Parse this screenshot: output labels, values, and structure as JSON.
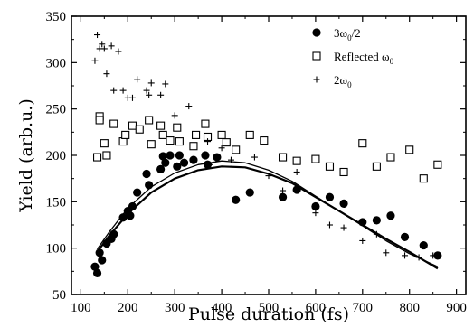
{
  "chart_data": {
    "type": "scatter",
    "xlabel": "Pulse duration (fs)",
    "ylabel": "Yield (arb.u.)",
    "xlim": [
      80,
      920
    ],
    "ylim": [
      50,
      350
    ],
    "xticks": [
      100,
      200,
      300,
      400,
      500,
      600,
      700,
      800,
      900
    ],
    "yticks": [
      50,
      100,
      150,
      200,
      250,
      300,
      350
    ],
    "legend_position": "top-right",
    "series": [
      {
        "name": "3ω0/2",
        "label_main": "3ω",
        "label_sub": "0",
        "label_suffix": "/2",
        "marker": "filled-circle",
        "color": "#000000",
        "points": [
          [
            130,
            80
          ],
          [
            135,
            73
          ],
          [
            145,
            87
          ],
          [
            140,
            95
          ],
          [
            155,
            105
          ],
          [
            165,
            110
          ],
          [
            170,
            115
          ],
          [
            190,
            133
          ],
          [
            200,
            140
          ],
          [
            205,
            135
          ],
          [
            210,
            145
          ],
          [
            220,
            160
          ],
          [
            240,
            180
          ],
          [
            245,
            168
          ],
          [
            270,
            185
          ],
          [
            275,
            199
          ],
          [
            280,
            192
          ],
          [
            290,
            200
          ],
          [
            305,
            188
          ],
          [
            310,
            200
          ],
          [
            320,
            192
          ],
          [
            340,
            195
          ],
          [
            365,
            200
          ],
          [
            370,
            190
          ],
          [
            390,
            198
          ],
          [
            430,
            152
          ],
          [
            460,
            160
          ],
          [
            530,
            155
          ],
          [
            560,
            163
          ],
          [
            600,
            145
          ],
          [
            630,
            155
          ],
          [
            660,
            148
          ],
          [
            700,
            128
          ],
          [
            730,
            130
          ],
          [
            760,
            135
          ],
          [
            790,
            112
          ],
          [
            830,
            103
          ],
          [
            860,
            92
          ]
        ]
      },
      {
        "name": "Reflected ω0",
        "label_main": "Reflected ω",
        "label_sub": "0",
        "label_suffix": "",
        "marker": "open-square",
        "color": "#000000",
        "points": [
          [
            135,
            198
          ],
          [
            140,
            242
          ],
          [
            140,
            238
          ],
          [
            150,
            213
          ],
          [
            155,
            200
          ],
          [
            170,
            234
          ],
          [
            190,
            215
          ],
          [
            195,
            222
          ],
          [
            210,
            232
          ],
          [
            225,
            228
          ],
          [
            245,
            238
          ],
          [
            250,
            212
          ],
          [
            270,
            232
          ],
          [
            275,
            222
          ],
          [
            290,
            216
          ],
          [
            305,
            230
          ],
          [
            310,
            215
          ],
          [
            340,
            210
          ],
          [
            345,
            222
          ],
          [
            365,
            234
          ],
          [
            370,
            220
          ],
          [
            400,
            222
          ],
          [
            410,
            214
          ],
          [
            430,
            206
          ],
          [
            460,
            222
          ],
          [
            490,
            216
          ],
          [
            530,
            198
          ],
          [
            560,
            194
          ],
          [
            600,
            196
          ],
          [
            630,
            188
          ],
          [
            660,
            182
          ],
          [
            700,
            213
          ],
          [
            730,
            188
          ],
          [
            760,
            198
          ],
          [
            800,
            206
          ],
          [
            830,
            175
          ],
          [
            860,
            190
          ]
        ]
      },
      {
        "name": "2ω0",
        "label_main": "2ω",
        "label_sub": "0",
        "label_suffix": "",
        "marker": "plus",
        "color": "#000000",
        "points": [
          [
            130,
            302
          ],
          [
            135,
            330
          ],
          [
            140,
            315
          ],
          [
            145,
            320
          ],
          [
            150,
            315
          ],
          [
            155,
            288
          ],
          [
            165,
            318
          ],
          [
            170,
            270
          ],
          [
            180,
            312
          ],
          [
            190,
            270
          ],
          [
            200,
            262
          ],
          [
            210,
            262
          ],
          [
            220,
            282
          ],
          [
            240,
            270
          ],
          [
            245,
            265
          ],
          [
            250,
            278
          ],
          [
            270,
            265
          ],
          [
            280,
            277
          ],
          [
            300,
            243
          ],
          [
            330,
            253
          ],
          [
            370,
            215
          ],
          [
            375,
            190
          ],
          [
            400,
            208
          ],
          [
            420,
            195
          ],
          [
            470,
            198
          ],
          [
            500,
            178
          ],
          [
            530,
            162
          ],
          [
            560,
            182
          ],
          [
            600,
            138
          ],
          [
            630,
            125
          ],
          [
            660,
            122
          ],
          [
            700,
            108
          ],
          [
            730,
            115
          ],
          [
            750,
            95
          ],
          [
            790,
            92
          ],
          [
            820,
            90
          ],
          [
            850,
            92
          ]
        ]
      }
    ],
    "fits": [
      {
        "stroke_width": 2.2,
        "points": [
          [
            135,
            96
          ],
          [
            160,
            113
          ],
          [
            200,
            137
          ],
          [
            250,
            160
          ],
          [
            300,
            175
          ],
          [
            350,
            184
          ],
          [
            400,
            188
          ],
          [
            450,
            187
          ],
          [
            500,
            180
          ],
          [
            550,
            170
          ],
          [
            600,
            155
          ],
          [
            650,
            140
          ],
          [
            700,
            125
          ],
          [
            750,
            110
          ],
          [
            800,
            96
          ],
          [
            860,
            78
          ]
        ]
      },
      {
        "stroke_width": 1.3,
        "points": [
          [
            135,
            99
          ],
          [
            160,
            117
          ],
          [
            200,
            143
          ],
          [
            250,
            166
          ],
          [
            300,
            181
          ],
          [
            350,
            190
          ],
          [
            400,
            194
          ],
          [
            450,
            192
          ],
          [
            500,
            184
          ],
          [
            550,
            172
          ],
          [
            600,
            156
          ],
          [
            650,
            140
          ],
          [
            700,
            124
          ],
          [
            750,
            108
          ],
          [
            800,
            94
          ],
          [
            860,
            80
          ]
        ]
      }
    ]
  }
}
